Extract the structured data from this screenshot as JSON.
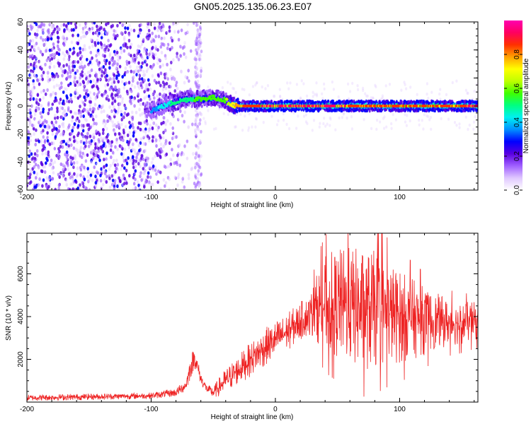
{
  "title": "GN05.2025.135.06.23.E07",
  "chart_data": [
    {
      "type": "heatmap",
      "xlabel": "Height of straight line (km)",
      "ylabel": "Frequency (Hz)",
      "xlim": [
        -200,
        163
      ],
      "ylim": [
        -60,
        60
      ],
      "xticks": [
        -200,
        -100,
        0,
        100
      ],
      "yticks": [
        -60,
        -40,
        -20,
        0,
        20,
        40,
        60
      ],
      "colorbar": {
        "label": "Normalized spectral amplitude",
        "range": [
          0,
          1
        ],
        "ticks": [
          "0.0",
          "0.2",
          "0.4",
          "0.6",
          "0.8"
        ],
        "colors": [
          "#ffffff",
          "#e0c8ff",
          "#a060ff",
          "#5a00e0",
          "#0000ff",
          "#0090ff",
          "#00f0f0",
          "#00ff80",
          "#40ff00",
          "#c0ff00",
          "#ffff00",
          "#ffa000",
          "#ff3000",
          "#ff0060",
          "#ff00b0"
        ]
      },
      "features": {
        "noise_region_x": [
          -200,
          -80
        ],
        "spike_column_x": -62,
        "trend_points": [
          [
            -100,
            -3
          ],
          [
            -90,
            0
          ],
          [
            -80,
            3
          ],
          [
            -70,
            5
          ],
          [
            -60,
            5
          ],
          [
            -50,
            6
          ],
          [
            -40,
            4
          ],
          [
            -35,
            1
          ],
          [
            -30,
            0
          ],
          [
            0,
            0
          ],
          [
            50,
            0
          ],
          [
            100,
            0
          ],
          [
            163,
            0
          ]
        ],
        "trend_amplitude": [
          [
            -100,
            0.35
          ],
          [
            -80,
            0.5
          ],
          [
            -60,
            0.55
          ],
          [
            -40,
            0.6
          ],
          [
            -30,
            0.8
          ],
          [
            0,
            0.95
          ],
          [
            50,
            0.9
          ],
          [
            100,
            0.85
          ],
          [
            163,
            0.9
          ]
        ]
      }
    },
    {
      "type": "line",
      "xlabel": "Height of straight line (km)",
      "ylabel": "SNR (10 * v/v)",
      "xlim": [
        -200,
        163
      ],
      "ylim": [
        0,
        7900
      ],
      "xticks": [
        -200,
        -100,
        0,
        100
      ],
      "yticks": [
        2000,
        4000,
        6000
      ],
      "color": "#ee2222",
      "envelope": {
        "x": [
          -200,
          -150,
          -100,
          -80,
          -72,
          -68,
          -65,
          -60,
          -55,
          -50,
          -40,
          -30,
          -20,
          -10,
          0,
          10,
          20,
          28,
          35,
          40,
          50,
          60,
          70,
          80,
          90,
          100,
          110,
          120,
          130,
          140,
          150,
          163
        ],
        "mean": [
          200,
          250,
          300,
          450,
          800,
          1700,
          2100,
          1100,
          600,
          450,
          1000,
          1500,
          2000,
          2500,
          2900,
          3300,
          3800,
          4100,
          4500,
          4600,
          4600,
          4500,
          4300,
          4300,
          4200,
          4000,
          3900,
          3800,
          3800,
          3700,
          3700,
          3800
        ],
        "amp": [
          150,
          150,
          150,
          200,
          300,
          600,
          500,
          300,
          200,
          300,
          600,
          700,
          800,
          900,
          900,
          900,
          900,
          1000,
          1800,
          2300,
          2600,
          2800,
          2900,
          2800,
          2500,
          2200,
          1900,
          1600,
          1300,
          1100,
          1000,
          900
        ]
      }
    }
  ]
}
